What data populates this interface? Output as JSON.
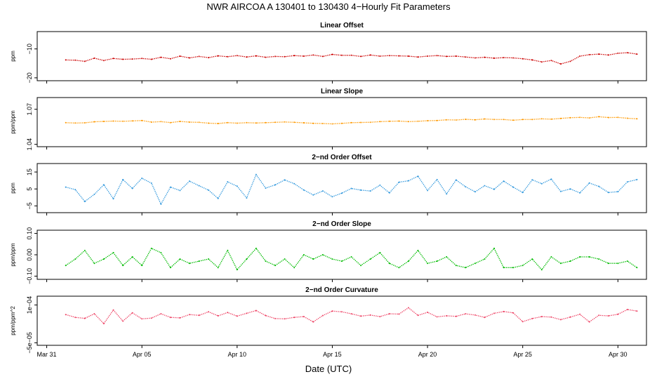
{
  "title": "NWR   AIRCOA A   130401 to 130430   4−Hourly Fit Parameters",
  "x_axis": {
    "label": "Date (UTC)",
    "ticks": [
      "Mar 31",
      "Apr 05",
      "Apr 10",
      "Apr 15",
      "Apr 20",
      "Apr 25",
      "Apr 30"
    ],
    "tick_days": [
      0,
      5,
      10,
      15,
      20,
      25,
      30
    ],
    "range_days": [
      -0.5,
      31.5
    ],
    "data_start_day": 1.0,
    "data_end_day": 31.0
  },
  "chart_data": [
    {
      "type": "line",
      "title": "Linear Offset",
      "ylabel": "ppm",
      "yticks": [
        "−20",
        "−10"
      ],
      "ytick_values": [
        -20,
        -10
      ],
      "ylim": [
        -21,
        -4
      ],
      "color": "#cc0000",
      "series": [
        {
          "x": [
            1,
            1.5,
            2,
            2.5,
            3,
            3.5,
            4,
            4.5,
            5,
            5.5,
            6,
            6.5,
            7,
            7.5,
            8,
            8.5,
            9,
            9.5,
            10,
            10.5,
            11,
            11.5,
            12,
            12.5,
            13,
            13.5,
            14,
            14.5,
            15,
            15.5,
            16,
            16.5,
            17,
            17.5,
            18,
            18.5,
            19,
            19.5,
            20,
            20.5,
            21,
            21.5,
            22,
            22.5,
            23,
            23.5,
            24,
            24.5,
            25,
            25.5,
            26,
            26.5,
            27,
            27.5,
            28,
            28.5,
            29,
            29.5,
            30,
            30.5,
            31
          ],
          "values": [
            -13.8,
            -13.9,
            -14.3,
            -13.2,
            -14,
            -13.3,
            -13.6,
            -13.5,
            -13.3,
            -13.6,
            -12.9,
            -13.4,
            -12.5,
            -13.1,
            -12.6,
            -13,
            -12.4,
            -12.7,
            -12.3,
            -12.8,
            -12.4,
            -12.9,
            -12.6,
            -12.7,
            -12.3,
            -12.5,
            -12.1,
            -12.6,
            -11.9,
            -12.2,
            -12.2,
            -12.6,
            -12.1,
            -12.5,
            -12.3,
            -12.4,
            -12.5,
            -12.8,
            -12.5,
            -12.3,
            -12.6,
            -12.5,
            -12.8,
            -13.1,
            -12.9,
            -13.2,
            -13,
            -13.1,
            -13.4,
            -13.8,
            -14.5,
            -14,
            -15.2,
            -14.3,
            -12.5,
            -12,
            -11.8,
            -12.1,
            -11.5,
            -11.3,
            -11.8
          ]
        }
      ]
    },
    {
      "type": "line",
      "title": "Linear Slope",
      "ylabel": "ppm/ppm",
      "yticks": [
        "1.04",
        "1.07"
      ],
      "ytick_values": [
        1.04,
        1.07
      ],
      "ylim": [
        1.038,
        1.08
      ],
      "color": "#ff9900",
      "series": [
        {
          "x": [
            1,
            1.5,
            2,
            2.5,
            3,
            3.5,
            4,
            4.5,
            5,
            5.5,
            6,
            6.5,
            7,
            7.5,
            8,
            8.5,
            9,
            9.5,
            10,
            10.5,
            11,
            11.5,
            12,
            12.5,
            13,
            13.5,
            14,
            14.5,
            15,
            15.5,
            16,
            16.5,
            17,
            17.5,
            18,
            18.5,
            19,
            19.5,
            20,
            20.5,
            21,
            21.5,
            22,
            22.5,
            23,
            23.5,
            24,
            24.5,
            25,
            25.5,
            26,
            26.5,
            27,
            27.5,
            28,
            28.5,
            29,
            29.5,
            30,
            30.5,
            31
          ],
          "values": [
            1.0585,
            1.0582,
            1.0584,
            1.0593,
            1.0596,
            1.0599,
            1.0597,
            1.06,
            1.0604,
            1.059,
            1.0594,
            1.0586,
            1.0596,
            1.059,
            1.0588,
            1.0581,
            1.0578,
            1.0586,
            1.0581,
            1.0585,
            1.0583,
            1.0585,
            1.0588,
            1.0591,
            1.0588,
            1.0584,
            1.058,
            1.0578,
            1.0575,
            1.0579,
            1.0585,
            1.0587,
            1.0589,
            1.0594,
            1.0597,
            1.0599,
            1.0594,
            1.0597,
            1.0602,
            1.0604,
            1.061,
            1.0608,
            1.0614,
            1.061,
            1.0617,
            1.0613,
            1.0612,
            1.0606,
            1.0612,
            1.0613,
            1.0618,
            1.0615,
            1.0622,
            1.0628,
            1.063,
            1.0626,
            1.0636,
            1.0629,
            1.063,
            1.0623,
            1.0618
          ]
        }
      ]
    },
    {
      "type": "line",
      "title": "2−nd Order Offset",
      "ylabel": "ppm",
      "yticks": [
        "−5",
        "5",
        "15"
      ],
      "ytick_values": [
        -5,
        5,
        15
      ],
      "ylim": [
        -9,
        20
      ],
      "color": "#3399dd",
      "series": [
        {
          "x": [
            1,
            1.5,
            2,
            2.5,
            3,
            3.5,
            4,
            4.5,
            5,
            5.5,
            6,
            6.5,
            7,
            7.5,
            8,
            8.5,
            9,
            9.5,
            10,
            10.5,
            11,
            11.5,
            12,
            12.5,
            13,
            13.5,
            14,
            14.5,
            15,
            15.5,
            16,
            16.5,
            17,
            17.5,
            18,
            18.5,
            19,
            19.5,
            20,
            20.5,
            21,
            21.5,
            22,
            22.5,
            23,
            23.5,
            24,
            24.5,
            25,
            25.5,
            26,
            26.5,
            27,
            27.5,
            28,
            28.5,
            29,
            29.5,
            30,
            30.5,
            31
          ],
          "values": [
            6.1,
            4.6,
            -2.4,
            1.8,
            7.5,
            -0.8,
            10.5,
            5.3,
            11.3,
            8.4,
            -4,
            6.1,
            4.1,
            9.6,
            6.9,
            4.3,
            -0.6,
            9.2,
            6.6,
            -0.3,
            13.5,
            5.5,
            7.4,
            10.3,
            8.1,
            4.4,
            1.5,
            3.8,
            0.4,
            2.5,
            5.3,
            4.3,
            3.8,
            7.2,
            2.7,
            9,
            9.8,
            12.5,
            4.1,
            10.5,
            2.1,
            10.3,
            6.3,
            3.3,
            6.9,
            4.8,
            9.6,
            6.1,
            2.9,
            10.4,
            8.1,
            10.8,
            3.5,
            5,
            2.7,
            8.5,
            6.5,
            2.9,
            3.4,
            9.2,
            10.5
          ]
        }
      ]
    },
    {
      "type": "line",
      "title": "2−nd Order Slope",
      "ylabel": "ppm/ppm",
      "yticks": [
        "−0.10",
        "0.00",
        "0.10"
      ],
      "ytick_values": [
        -0.1,
        0,
        0.1
      ],
      "ylim": [
        -0.115,
        0.115
      ],
      "color": "#00bb00",
      "series": [
        {
          "x": [
            1,
            1.5,
            2,
            2.5,
            3,
            3.5,
            4,
            4.5,
            5,
            5.5,
            6,
            6.5,
            7,
            7.5,
            8,
            8.5,
            9,
            9.5,
            10,
            10.5,
            11,
            11.5,
            12,
            12.5,
            13,
            13.5,
            14,
            14.5,
            15,
            15.5,
            16,
            16.5,
            17,
            17.5,
            18,
            18.5,
            19,
            19.5,
            20,
            20.5,
            21,
            21.5,
            22,
            22.5,
            23,
            23.5,
            24,
            24.5,
            25,
            25.5,
            26,
            26.5,
            27,
            27.5,
            28,
            28.5,
            29,
            29.5,
            30,
            30.5,
            31
          ],
          "values": [
            -0.05,
            -0.02,
            0.02,
            -0.04,
            -0.02,
            0.01,
            -0.05,
            -0.01,
            -0.05,
            0.03,
            0.01,
            -0.06,
            -0.02,
            -0.04,
            -0.03,
            -0.02,
            -0.06,
            0.02,
            -0.07,
            -0.02,
            0.03,
            -0.03,
            -0.05,
            -0.02,
            -0.06,
            0,
            -0.02,
            0,
            -0.02,
            -0.03,
            -0.01,
            -0.05,
            -0.02,
            0.01,
            -0.04,
            -0.06,
            -0.03,
            0.02,
            -0.04,
            -0.03,
            -0.01,
            -0.05,
            -0.06,
            -0.04,
            -0.02,
            0.03,
            -0.06,
            -0.06,
            -0.05,
            -0.02,
            -0.07,
            -0.01,
            -0.04,
            -0.03,
            -0.01,
            -0.01,
            -0.02,
            -0.04,
            -0.04,
            -0.03,
            -0.06
          ]
        }
      ]
    },
    {
      "type": "line",
      "title": "2−nd Order Curvature",
      "ylabel": "ppm/ppm^2",
      "yticks": [
        "−5e−05",
        "1e−04"
      ],
      "ytick_values": [
        -5e-05,
        0.0001
      ],
      "ylim": [
        -6e-05,
        0.000135
      ],
      "color": "#ee4466",
      "series": [
        {
          "x": [
            1,
            1.5,
            2,
            2.5,
            3,
            3.5,
            4,
            4.5,
            5,
            5.5,
            6,
            6.5,
            7,
            7.5,
            8,
            8.5,
            9,
            9.5,
            10,
            10.5,
            11,
            11.5,
            12,
            12.5,
            13,
            13.5,
            14,
            14.5,
            15,
            15.5,
            16,
            16.5,
            17,
            17.5,
            18,
            18.5,
            19,
            19.5,
            20,
            20.5,
            21,
            21.5,
            22,
            22.5,
            23,
            23.5,
            24,
            24.5,
            25,
            25.5,
            26,
            26.5,
            27,
            27.5,
            28,
            28.5,
            29,
            29.5,
            30,
            30.5,
            31
          ],
          "values": [
            6.2e-05,
            5.1e-05,
            4.7e-05,
            6.5e-05,
            2.6e-05,
            8e-05,
            3.6e-05,
            6.9e-05,
            4.5e-05,
            4.8e-05,
            6.5e-05,
            5.1e-05,
            4.9e-05,
            6.2e-05,
            5.9e-05,
            7.3e-05,
            5.7e-05,
            7e-05,
            5.6e-05,
            6.7e-05,
            7.8e-05,
            5.8e-05,
            4.6e-05,
            4.5e-05,
            5.1e-05,
            5.4e-05,
            3.3e-05,
            5.8e-05,
            7.6e-05,
            7.3e-05,
            6.5e-05,
            5.6e-05,
            6e-05,
            5.4e-05,
            6.5e-05,
            6.4e-05,
            8.9e-05,
            5.9e-05,
            7.1e-05,
            5.3e-05,
            5.7e-05,
            5.5e-05,
            6.5e-05,
            6e-05,
            5.1e-05,
            6.7e-05,
            7.4e-05,
            6.9e-05,
            3.4e-05,
            4.6e-05,
            5.4e-05,
            5.2e-05,
            4.2e-05,
            5.2e-05,
            6.3e-05,
            3.3e-05,
            5.9e-05,
            5.7e-05,
            6.3e-05,
            8.2e-05,
            7.6e-05
          ]
        }
      ]
    }
  ]
}
